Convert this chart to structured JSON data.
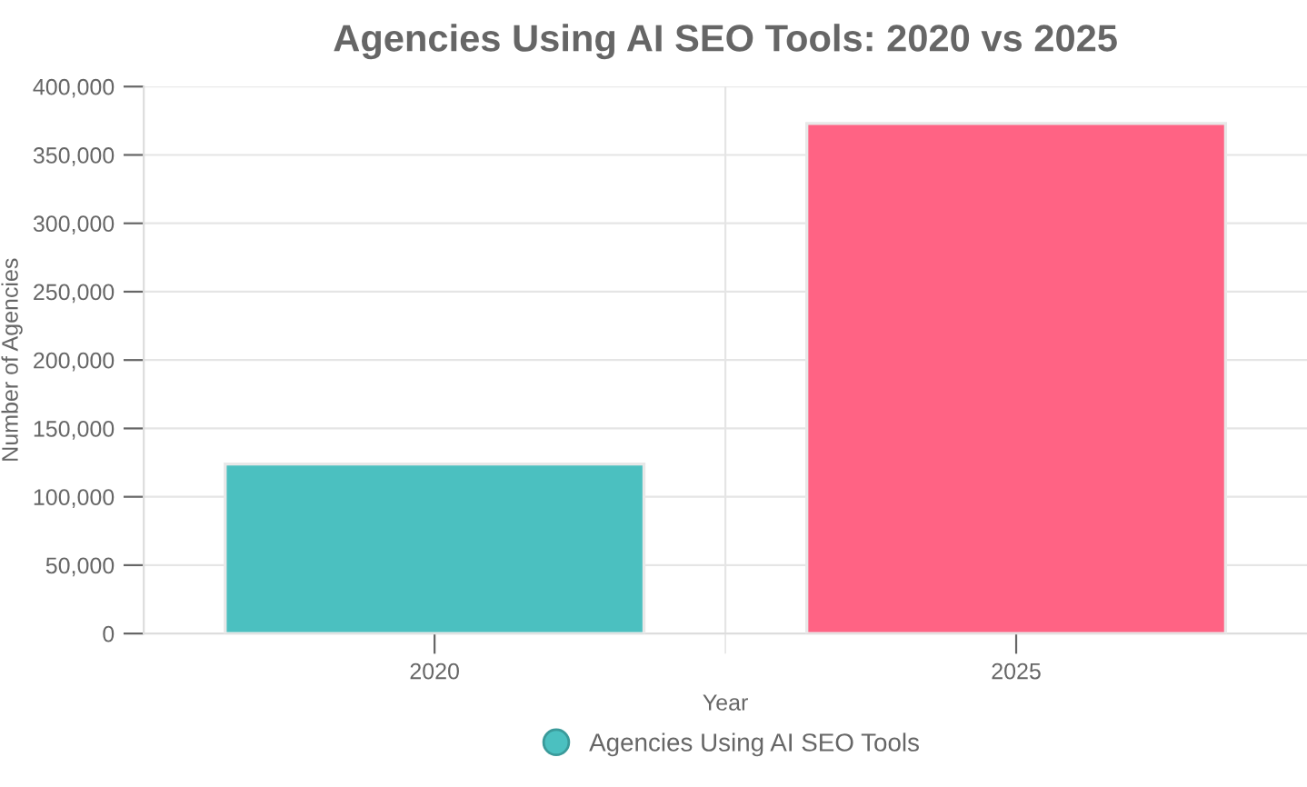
{
  "chart_data": {
    "type": "bar",
    "title": "Agencies Using AI SEO Tools: 2020 vs 2025",
    "xlabel": "Year",
    "ylabel": "Number of Agencies",
    "categories": [
      "2020",
      "2025"
    ],
    "series": [
      {
        "name": "Agencies Using AI SEO Tools",
        "colors": [
          "#4bc0c0",
          "#ff6384"
        ],
        "values": [
          124000,
          373000
        ]
      }
    ],
    "ylim": [
      0,
      400000
    ],
    "yticks": [
      {
        "value": 0,
        "label": "0"
      },
      {
        "value": 50000,
        "label": "50,000"
      },
      {
        "value": 100000,
        "label": "100,000"
      },
      {
        "value": 150000,
        "label": "150,000"
      },
      {
        "value": 200000,
        "label": "200,000"
      },
      {
        "value": 250000,
        "label": "250,000"
      },
      {
        "value": 300000,
        "label": "300,000"
      },
      {
        "value": 350000,
        "label": "350,000"
      },
      {
        "value": 400000,
        "label": "400,000"
      }
    ],
    "grid": true,
    "legend": "bottom"
  }
}
